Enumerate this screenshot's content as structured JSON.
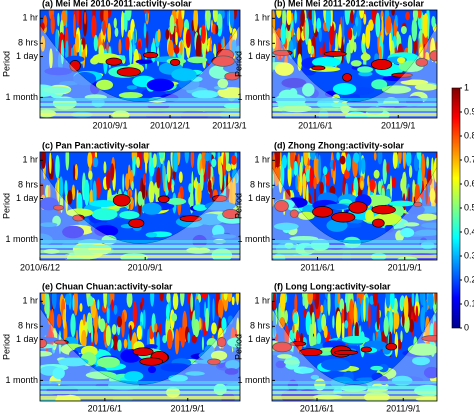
{
  "chart_data": [
    {
      "type": "heatmap",
      "title": "(a) Mei Mei 2010-2011:activity-solar",
      "ylabel": "Period",
      "yscale": "log",
      "ylim": [
        0.5,
        4000
      ],
      "yticks": [
        {
          "value": 1,
          "label": "1 hr"
        },
        {
          "value": 8,
          "label": "8 hrs"
        },
        {
          "value": 24,
          "label": "1 day"
        },
        {
          "value": 720,
          "label": "1 month"
        }
      ],
      "xlim": [
        "2010/5/18",
        "2011/3/17"
      ],
      "xticks": [
        "2010/9/1",
        "2010/12/1",
        "2011/3/1"
      ]
    },
    {
      "type": "heatmap",
      "title": "(b) Mei Mei 2011-2012:activity-solar",
      "ylabel": "Period",
      "yscale": "log",
      "ylim": [
        0.5,
        4000
      ],
      "yticks": [
        {
          "value": 1,
          "label": "1 hr"
        },
        {
          "value": 8,
          "label": "8 hrs"
        },
        {
          "value": 24,
          "label": "1 day"
        },
        {
          "value": 720,
          "label": "1 month"
        }
      ],
      "xlim": [
        "2011/4/14",
        "2011/10/14"
      ],
      "xticks": [
        "2011/6/1",
        "2011/9/1"
      ]
    },
    {
      "type": "heatmap",
      "title": "(c) Pan Pan:activity-solar",
      "ylabel": "Period",
      "yscale": "log",
      "ylim": [
        0.5,
        4000
      ],
      "yticks": [
        {
          "value": 1,
          "label": "1 hr"
        },
        {
          "value": 8,
          "label": "8 hrs"
        },
        {
          "value": 24,
          "label": "1 day"
        },
        {
          "value": 720,
          "label": "1 month"
        }
      ],
      "xlim": [
        "2010/6/12",
        "2010/11/13"
      ],
      "xticks": [
        "2010/6/12",
        "2010/9/1"
      ]
    },
    {
      "type": "heatmap",
      "title": "(d) Zhong Zhong:activity-solar",
      "ylabel": "Period",
      "yscale": "log",
      "ylim": [
        0.5,
        4000
      ],
      "yticks": [
        {
          "value": 1,
          "label": "1 hr"
        },
        {
          "value": 8,
          "label": "8 hrs"
        },
        {
          "value": 24,
          "label": "1 day"
        },
        {
          "value": 720,
          "label": "1 month"
        }
      ],
      "xlim": [
        "2011/4/14",
        "2011/10/5"
      ],
      "xticks": [
        "2011/6/1",
        "2011/9/1"
      ]
    },
    {
      "type": "heatmap",
      "title": "(e) Chuan Chuan:activity-solar",
      "ylabel": "Period",
      "yscale": "log",
      "ylim": [
        0.5,
        4000
      ],
      "yticks": [
        {
          "value": 1,
          "label": "1 hr"
        },
        {
          "value": 8,
          "label": "8 hrs"
        },
        {
          "value": 24,
          "label": "1 day"
        },
        {
          "value": 720,
          "label": "1 month"
        }
      ],
      "xlim": [
        "2011/3/21",
        "2011/10/29"
      ],
      "xticks": [
        "2011/6/1",
        "2011/9/1"
      ]
    },
    {
      "type": "heatmap",
      "title": "(f) Long Long:activity-solar",
      "ylabel": "Period",
      "yscale": "log",
      "ylim": [
        0.5,
        4000
      ],
      "yticks": [
        {
          "value": 1,
          "label": "1 hr"
        },
        {
          "value": 8,
          "label": "8 hrs"
        },
        {
          "value": 24,
          "label": "1 day"
        },
        {
          "value": 720,
          "label": "1 month"
        }
      ],
      "xlim": [
        "2011/4/14",
        "2011/10/7"
      ],
      "xticks": [
        "2011/6/1",
        "2011/9/1"
      ]
    },
    {
      "type": "colorbar",
      "ylim": [
        0,
        1
      ],
      "yticks": [
        0,
        0.1,
        0.2,
        0.3,
        0.4,
        0.5,
        0.6,
        0.7,
        0.8,
        0.9,
        1
      ]
    }
  ]
}
